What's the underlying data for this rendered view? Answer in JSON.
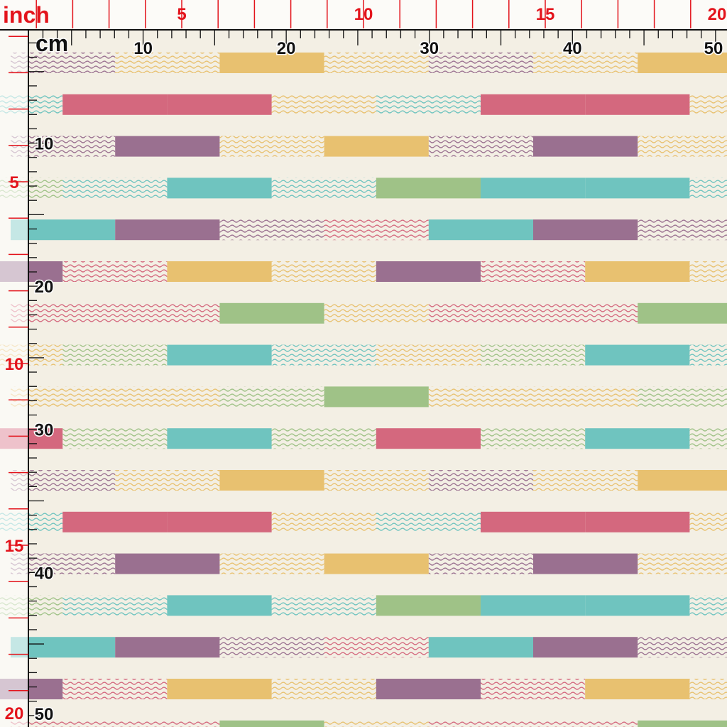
{
  "ruler_top": {
    "unit": "inch",
    "labels": [
      5,
      10,
      15,
      20
    ]
  },
  "ruler_cm": {
    "unit": "cm",
    "labels": [
      10,
      20,
      30,
      40,
      50
    ]
  },
  "ruler_left_inch": {
    "labels": [
      5,
      10,
      15,
      20
    ]
  },
  "ruler_left_cm": {
    "labels": [
      10,
      20,
      30,
      40,
      50
    ]
  }
}
